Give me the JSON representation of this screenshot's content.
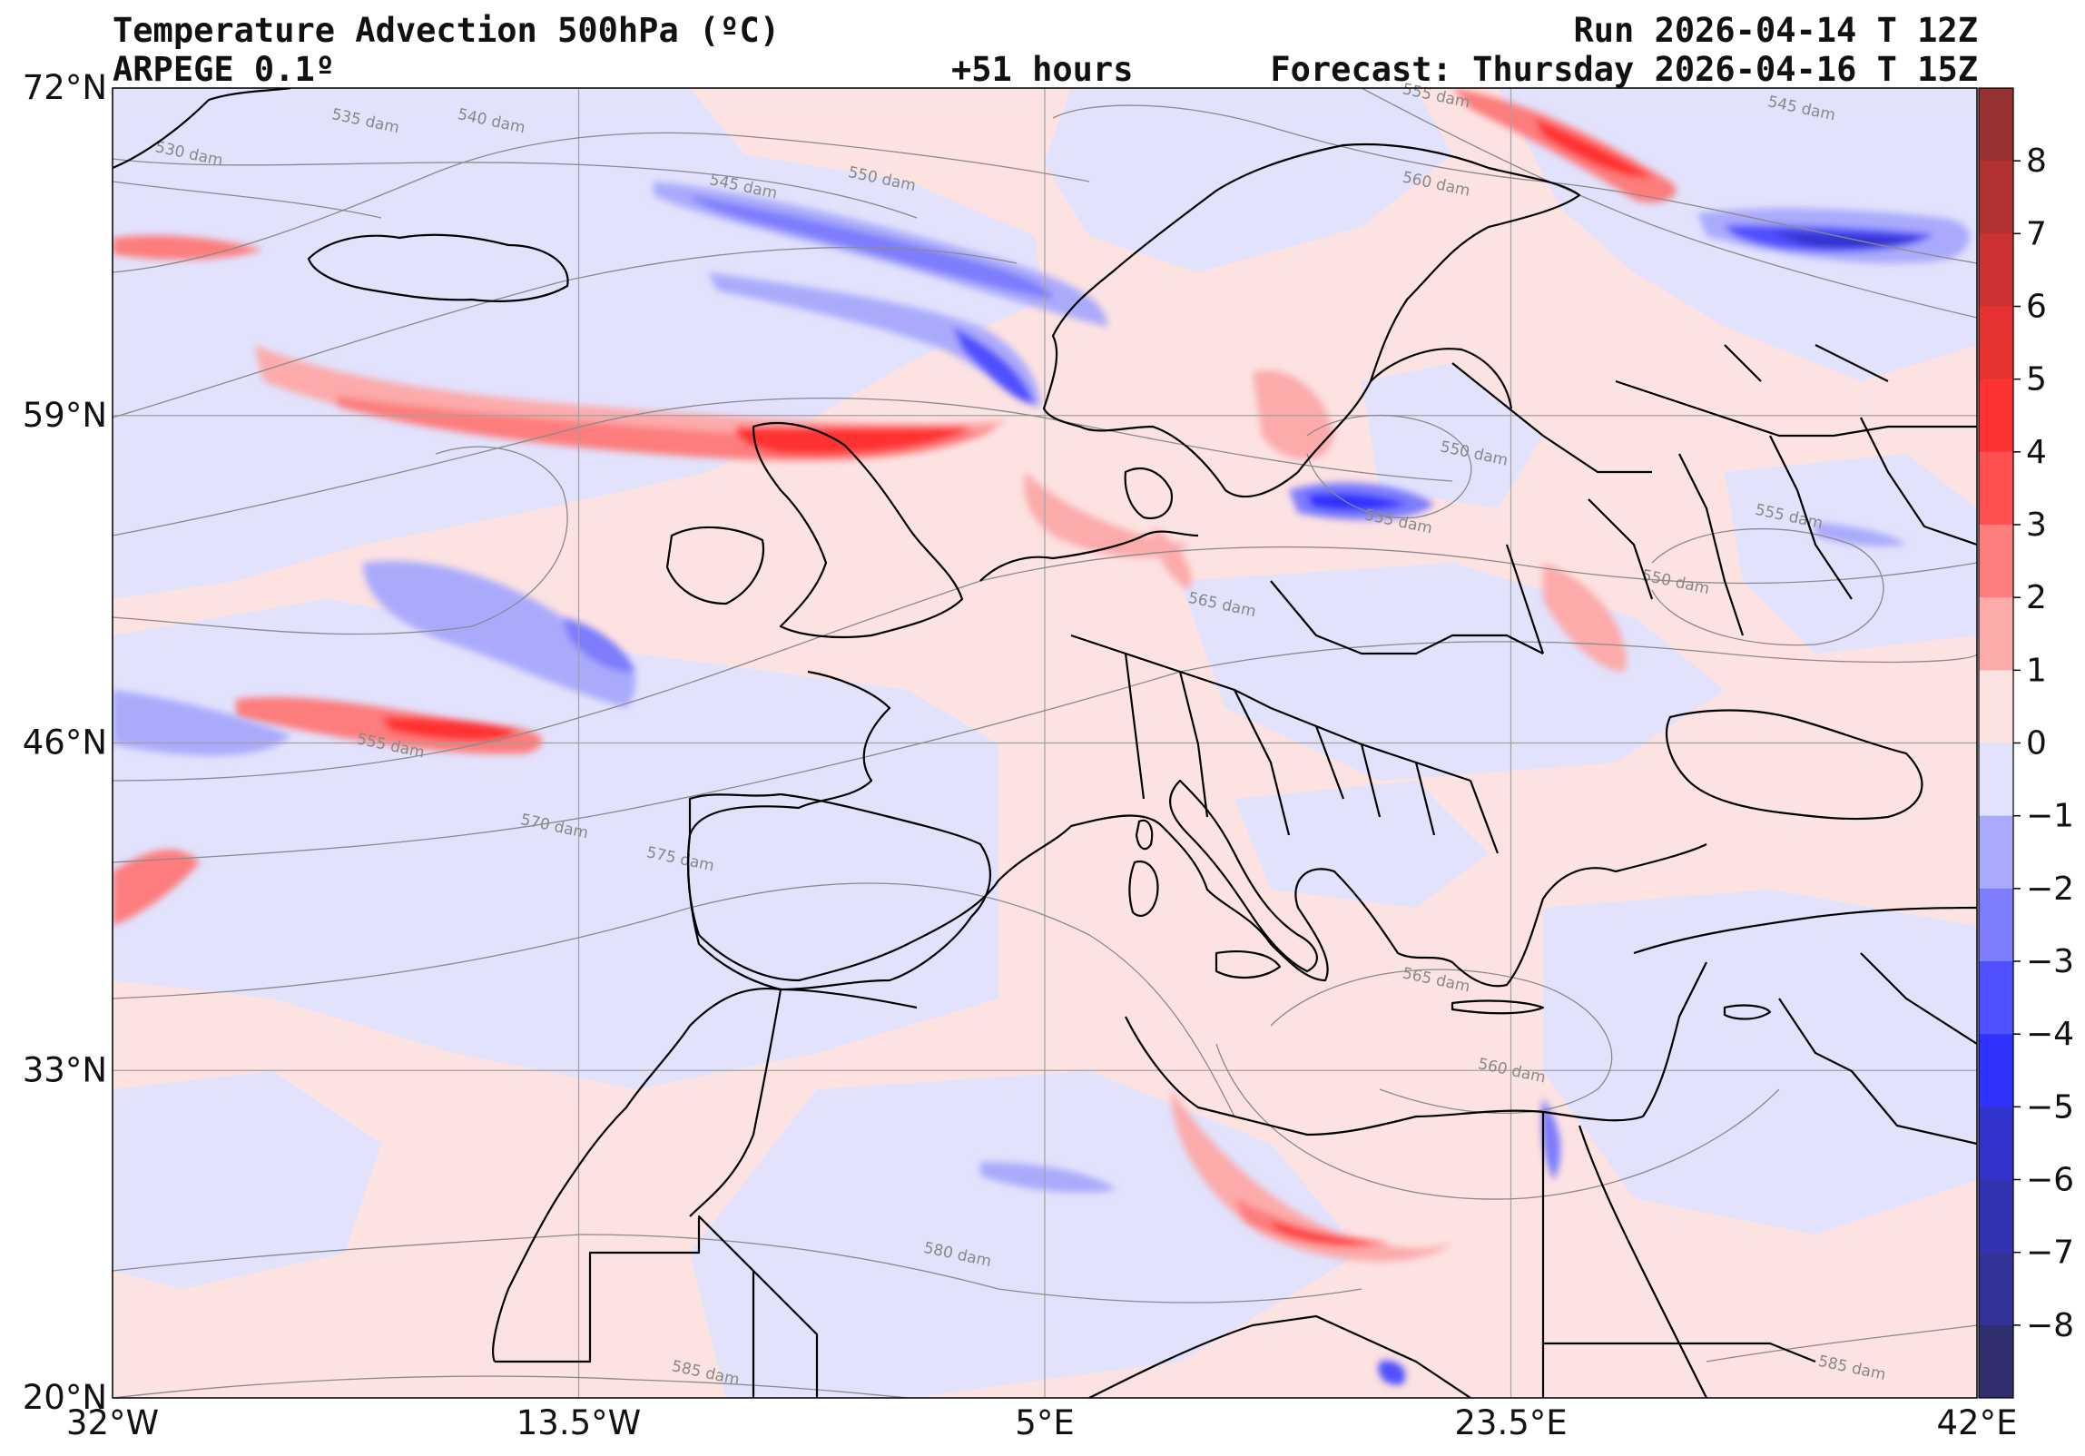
{
  "header": {
    "title": "Temperature Advection  500hPa (ºC)",
    "model": "ARPEGE 0.1º",
    "lead_time": "+51 hours",
    "run": "Run 2026-04-14 T 12Z",
    "forecast": "Forecast: Thursday 2026-04-16 T 15Z"
  },
  "map": {
    "extent": {
      "lon_min": -32,
      "lon_max": 42,
      "lat_min": 20,
      "lat_max": 72
    },
    "lat_ticks": [
      {
        "value": 72,
        "label": "72°N"
      },
      {
        "value": 59,
        "label": "59°N"
      },
      {
        "value": 46,
        "label": "46°N"
      },
      {
        "value": 33,
        "label": "33°N"
      },
      {
        "value": 20,
        "label": "20°N"
      }
    ],
    "lon_ticks": [
      {
        "value": -32,
        "label": "32°W"
      },
      {
        "value": -13.5,
        "label": "13.5°W"
      },
      {
        "value": 5,
        "label": "5°E"
      },
      {
        "value": 23.5,
        "label": "23.5°E"
      },
      {
        "value": 42,
        "label": "42°E"
      }
    ],
    "background_color": "#fde2e2",
    "contour_labels": [
      {
        "text": "535 dam",
        "lon": -22,
        "lat": 70.5
      },
      {
        "text": "530 dam",
        "lon": -29,
        "lat": 69.2
      },
      {
        "text": "540 dam",
        "lon": -17,
        "lat": 70.5
      },
      {
        "text": "545 dam",
        "lon": -7,
        "lat": 67.9
      },
      {
        "text": "550 dam",
        "lon": -1.5,
        "lat": 68.2
      },
      {
        "text": "555 dam",
        "lon": 20.5,
        "lat": 71.5
      },
      {
        "text": "545 dam",
        "lon": 35,
        "lat": 71.0
      },
      {
        "text": "560 dam",
        "lon": 20.5,
        "lat": 68.0
      },
      {
        "text": "550 dam",
        "lon": 22,
        "lat": 57.3
      },
      {
        "text": "555 dam",
        "lon": 19,
        "lat": 54.6
      },
      {
        "text": "550 dam",
        "lon": 30,
        "lat": 52.2
      },
      {
        "text": "555 dam",
        "lon": 34.5,
        "lat": 54.8
      },
      {
        "text": "565 dam",
        "lon": 12,
        "lat": 51.3
      },
      {
        "text": "555 dam",
        "lon": -21,
        "lat": 45.7
      },
      {
        "text": "570 dam",
        "lon": -14.5,
        "lat": 42.5
      },
      {
        "text": "575 dam",
        "lon": -9.5,
        "lat": 41.2
      },
      {
        "text": "565 dam",
        "lon": 20.5,
        "lat": 36.4
      },
      {
        "text": "560 dam",
        "lon": 23.5,
        "lat": 32.8
      },
      {
        "text": "580 dam",
        "lon": 1.5,
        "lat": 25.5
      },
      {
        "text": "585 dam",
        "lon": -8.5,
        "lat": 20.8
      },
      {
        "text": "585 dam",
        "lon": 37,
        "lat": 21.0
      }
    ]
  },
  "colorbar": {
    "ticks": [
      {
        "value": 8,
        "label": "8"
      },
      {
        "value": 7,
        "label": "7"
      },
      {
        "value": 6,
        "label": "6"
      },
      {
        "value": 5,
        "label": "5"
      },
      {
        "value": 4,
        "label": "4"
      },
      {
        "value": 3,
        "label": "3"
      },
      {
        "value": 2,
        "label": "2"
      },
      {
        "value": 1,
        "label": "1"
      },
      {
        "value": 0,
        "label": "0"
      },
      {
        "value": -1,
        "label": "−1"
      },
      {
        "value": -2,
        "label": "−2"
      },
      {
        "value": -3,
        "label": "−3"
      },
      {
        "value": -4,
        "label": "−4"
      },
      {
        "value": -5,
        "label": "−5"
      },
      {
        "value": -6,
        "label": "−6"
      },
      {
        "value": -7,
        "label": "−7"
      },
      {
        "value": -8,
        "label": "−8"
      }
    ],
    "bands": [
      {
        "from": 8,
        "to": 9,
        "color": "#973232"
      },
      {
        "from": 7,
        "to": 8,
        "color": "#b23232"
      },
      {
        "from": 6,
        "to": 7,
        "color": "#cc3232"
      },
      {
        "from": 5,
        "to": 6,
        "color": "#e73232"
      },
      {
        "from": 4,
        "to": 5,
        "color": "#ff3232"
      },
      {
        "from": 3,
        "to": 4,
        "color": "#fe5050"
      },
      {
        "from": 2,
        "to": 3,
        "color": "#fd7d7d"
      },
      {
        "from": 1,
        "to": 2,
        "color": "#fcaaaa"
      },
      {
        "from": 0,
        "to": 1,
        "color": "#fde2e2"
      },
      {
        "from": -1,
        "to": 0,
        "color": "#e2e2fd"
      },
      {
        "from": -2,
        "to": -1,
        "color": "#aaaafc"
      },
      {
        "from": -3,
        "to": -2,
        "color": "#7d7dfd"
      },
      {
        "from": -4,
        "to": -3,
        "color": "#5050fe"
      },
      {
        "from": -5,
        "to": -4,
        "color": "#3232ff"
      },
      {
        "from": -6,
        "to": -5,
        "color": "#3232cc"
      },
      {
        "from": -7,
        "to": -6,
        "color": "#3232b2"
      },
      {
        "from": -8,
        "to": -7,
        "color": "#323297"
      },
      {
        "from": -9,
        "to": -8,
        "color": "#2f2f6e"
      }
    ]
  }
}
